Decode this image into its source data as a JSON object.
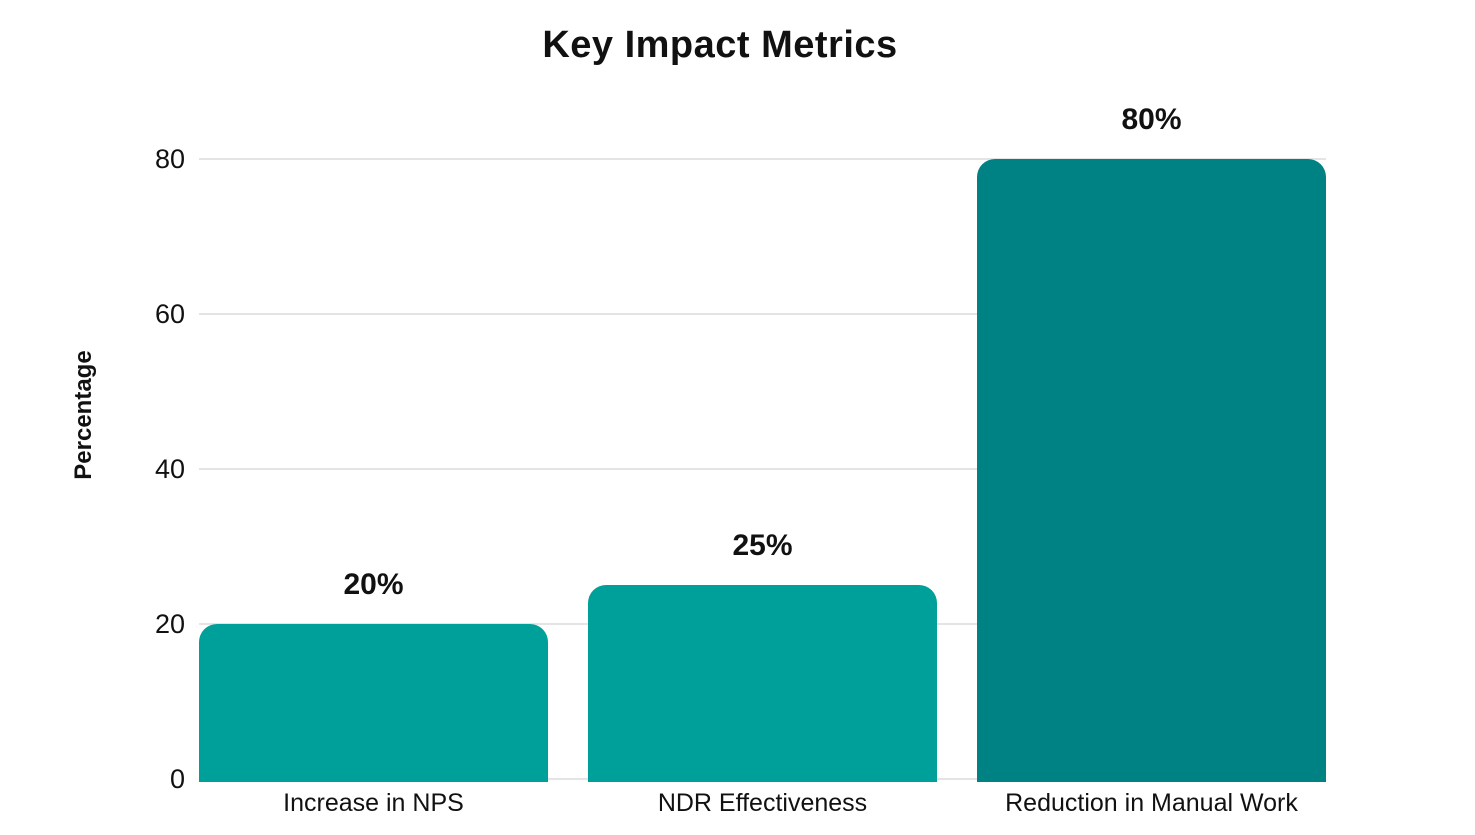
{
  "page": {
    "background_color": "#ffffff",
    "text_color": "#111111"
  },
  "chart_data": {
    "type": "bar",
    "title": "Key Impact Metrics",
    "xlabel": "",
    "ylabel": "Percentage",
    "categories": [
      "Increase in NPS",
      "NDR Effectiveness",
      "Reduction in Manual Work"
    ],
    "values": [
      20,
      25,
      80
    ],
    "value_labels": [
      "20%",
      "25%",
      "80%"
    ],
    "yticks": [
      0,
      20,
      40,
      60,
      80
    ],
    "ylim": [
      0,
      80
    ],
    "grid": "horizontal",
    "legend_position": "none",
    "bar_colors": [
      "#00A09A",
      "#00A09A",
      "#008183"
    ],
    "gridline_color": "#e4e4e4",
    "title_color": "#111111",
    "label_color": "#111111"
  }
}
